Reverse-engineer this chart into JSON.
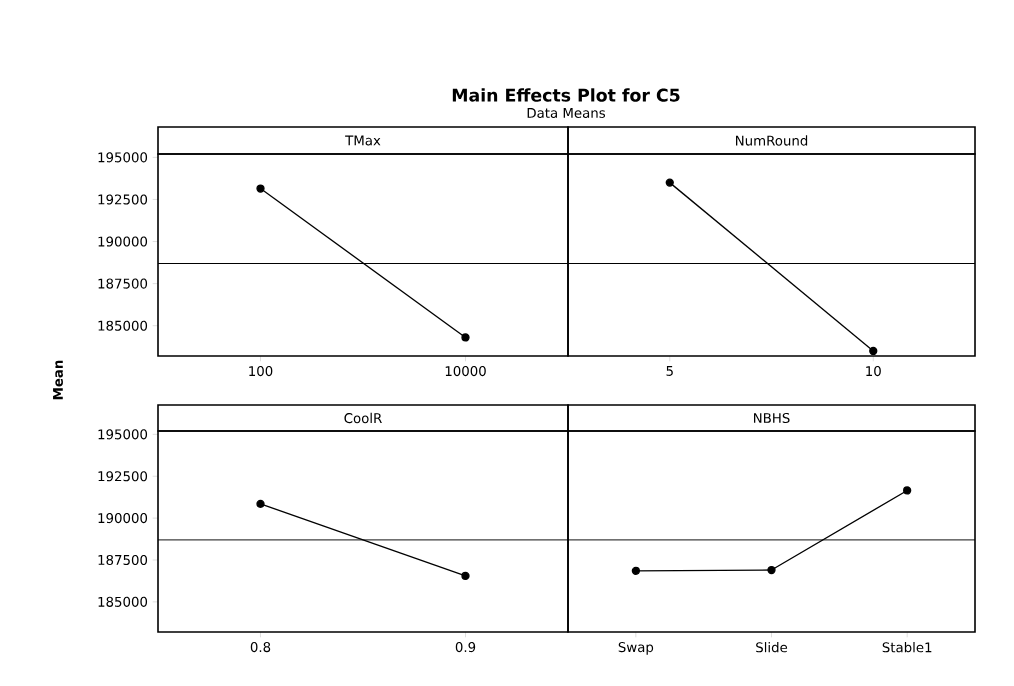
{
  "chart_data": [
    {
      "type": "line",
      "title": "Main Effects Plot for C5",
      "subtitle": "Data Means",
      "ylabel": "Mean",
      "xlabel": "TMax",
      "categories": [
        "100",
        "10000"
      ],
      "values": [
        193150,
        184300
      ],
      "color": "#000000",
      "marker": "circle",
      "ylim": [
        183200,
        195200
      ],
      "yticks": [
        185000,
        187500,
        190000,
        192500,
        195000
      ],
      "ref_lines": [
        {
          "axis": "y",
          "value": 188700,
          "color": "#000000"
        }
      ]
    },
    {
      "type": "line",
      "xlabel": "NumRound",
      "categories": [
        "5",
        "10"
      ],
      "values": [
        193500,
        183500
      ],
      "color": "#000000",
      "marker": "circle",
      "ylim": [
        183200,
        195200
      ],
      "yticks": [
        185000,
        187500,
        190000,
        192500,
        195000
      ],
      "tick_labels": "x",
      "ref_lines": [
        {
          "axis": "y",
          "value": 188700,
          "color": "#000000"
        }
      ]
    },
    {
      "type": "line",
      "xlabel": "CoolR",
      "categories": [
        "0.8",
        "0.9"
      ],
      "values": [
        190850,
        186550
      ],
      "color": "#000000",
      "marker": "circle",
      "ylim": [
        183200,
        195200
      ],
      "yticks": [
        185000,
        187500,
        190000,
        192500,
        195000
      ],
      "ref_lines": [
        {
          "axis": "y",
          "value": 188700,
          "color": "#000000"
        }
      ]
    },
    {
      "type": "line",
      "xlabel": "NBHS",
      "categories": [
        "Swap",
        "Slide",
        "Stable1"
      ],
      "values": [
        186850,
        186900,
        191650
      ],
      "color": "#000000",
      "marker": "circle",
      "ylim": [
        183200,
        195200
      ],
      "yticks": [
        185000,
        187500,
        190000,
        192500,
        195000
      ],
      "tick_labels": "x",
      "ref_lines": [
        {
          "axis": "y",
          "value": 188700,
          "color": "#000000"
        }
      ]
    }
  ]
}
